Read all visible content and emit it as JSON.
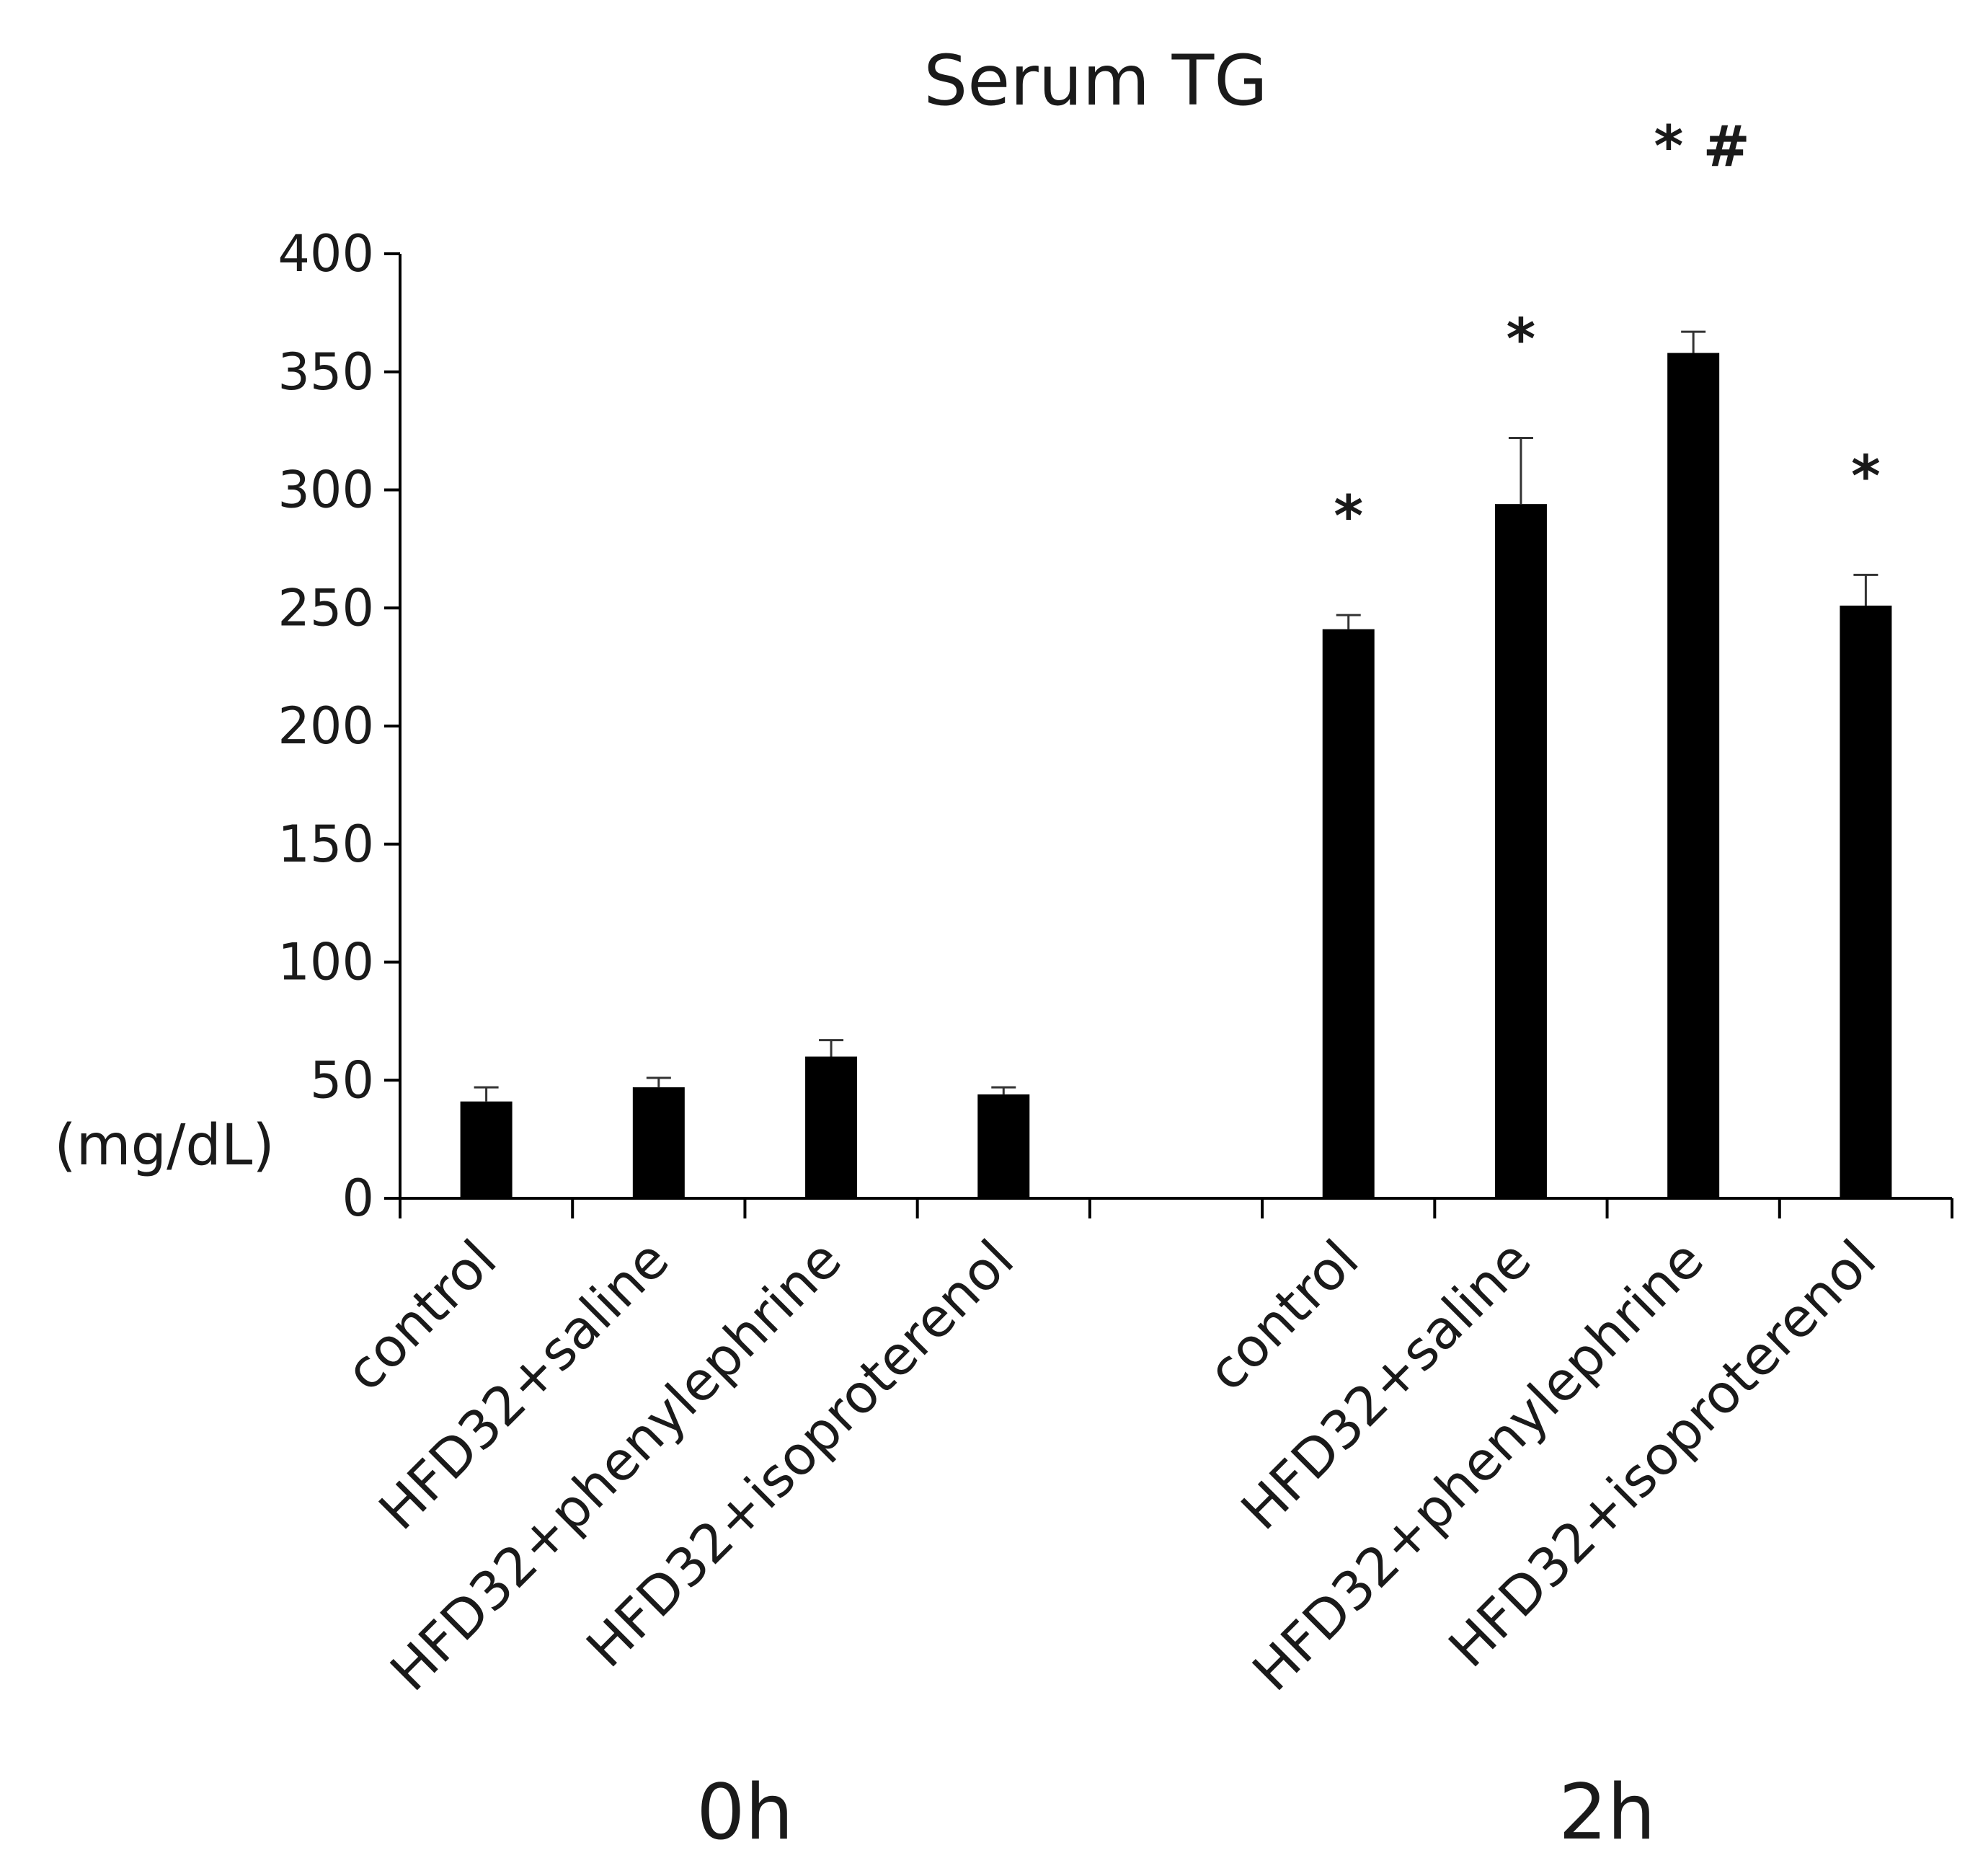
{
  "chart_data": {
    "type": "bar",
    "title": "Serum TG",
    "ylabel": "(mg/dL)",
    "xlabel": "",
    "ylim": [
      0,
      400
    ],
    "yticks": [
      "0",
      "50",
      "100",
      "150",
      "200",
      "250",
      "300",
      "350",
      "400"
    ],
    "grid": false,
    "bar_color": "#000000",
    "groups": [
      {
        "label": "0h",
        "bars": [
          {
            "category": "control",
            "value": 41,
            "error": 6,
            "annotation": ""
          },
          {
            "category": "HFD32+saline",
            "value": 47,
            "error": 4,
            "annotation": ""
          },
          {
            "category": "HFD32+phenylephrine",
            "value": 60,
            "error": 7,
            "annotation": ""
          },
          {
            "category": "HFD32+isoproterenol",
            "value": 44,
            "error": 3,
            "annotation": ""
          }
        ]
      },
      {
        "label": "2h",
        "bars": [
          {
            "category": "control",
            "value": 241,
            "error": 6,
            "annotation": "*"
          },
          {
            "category": "HFD32+saline",
            "value": 294,
            "error": 28,
            "annotation": "*"
          },
          {
            "category": "HFD32+phenylephrine",
            "value": 358,
            "error": 9,
            "annotation": "* #"
          },
          {
            "category": "HFD32+isoproterenol",
            "value": 251,
            "error": 13,
            "annotation": "*"
          }
        ]
      }
    ]
  }
}
